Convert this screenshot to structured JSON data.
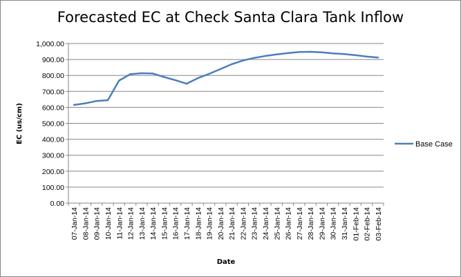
{
  "chart_data": {
    "type": "line",
    "title": "Forecasted EC at Check Santa Clara Tank Inflow",
    "xlabel": "Date",
    "ylabel": "EC (us/cm)",
    "ylim": [
      0,
      1000
    ],
    "y_ticks": [
      "0.00",
      "100.00",
      "200.00",
      "300.00",
      "400.00",
      "500.00",
      "600.00",
      "700.00",
      "800.00",
      "900.00",
      "1,000.00"
    ],
    "grid": true,
    "legend_position": "right",
    "categories": [
      "07-Jan-14",
      "08-Jan-14",
      "09-Jan-14",
      "10-Jan-14",
      "11-Jan-14",
      "12-Jan-14",
      "13-Jan-14",
      "14-Jan-14",
      "15-Jan-14",
      "16-Jan-14",
      "17-Jan-14",
      "18-Jan-14",
      "19-Jan-14",
      "20-Jan-14",
      "21-Jan-14",
      "22-Jan-14",
      "23-Jan-14",
      "24-Jan-14",
      "25-Jan-14",
      "26-Jan-14",
      "27-Jan-14",
      "28-Jan-14",
      "29-Jan-14",
      "30-Jan-14",
      "31-Jan-14",
      "01-Feb-14",
      "02-Feb-14",
      "03-Feb-14"
    ],
    "series": [
      {
        "name": "Base Case",
        "color": "#4a7ebb",
        "values": [
          615,
          625,
          640,
          645,
          768,
          808,
          814,
          812,
          790,
          770,
          748,
          783,
          810,
          840,
          870,
          893,
          910,
          922,
          932,
          940,
          947,
          948,
          945,
          938,
          934,
          927,
          918,
          912
        ]
      }
    ]
  }
}
